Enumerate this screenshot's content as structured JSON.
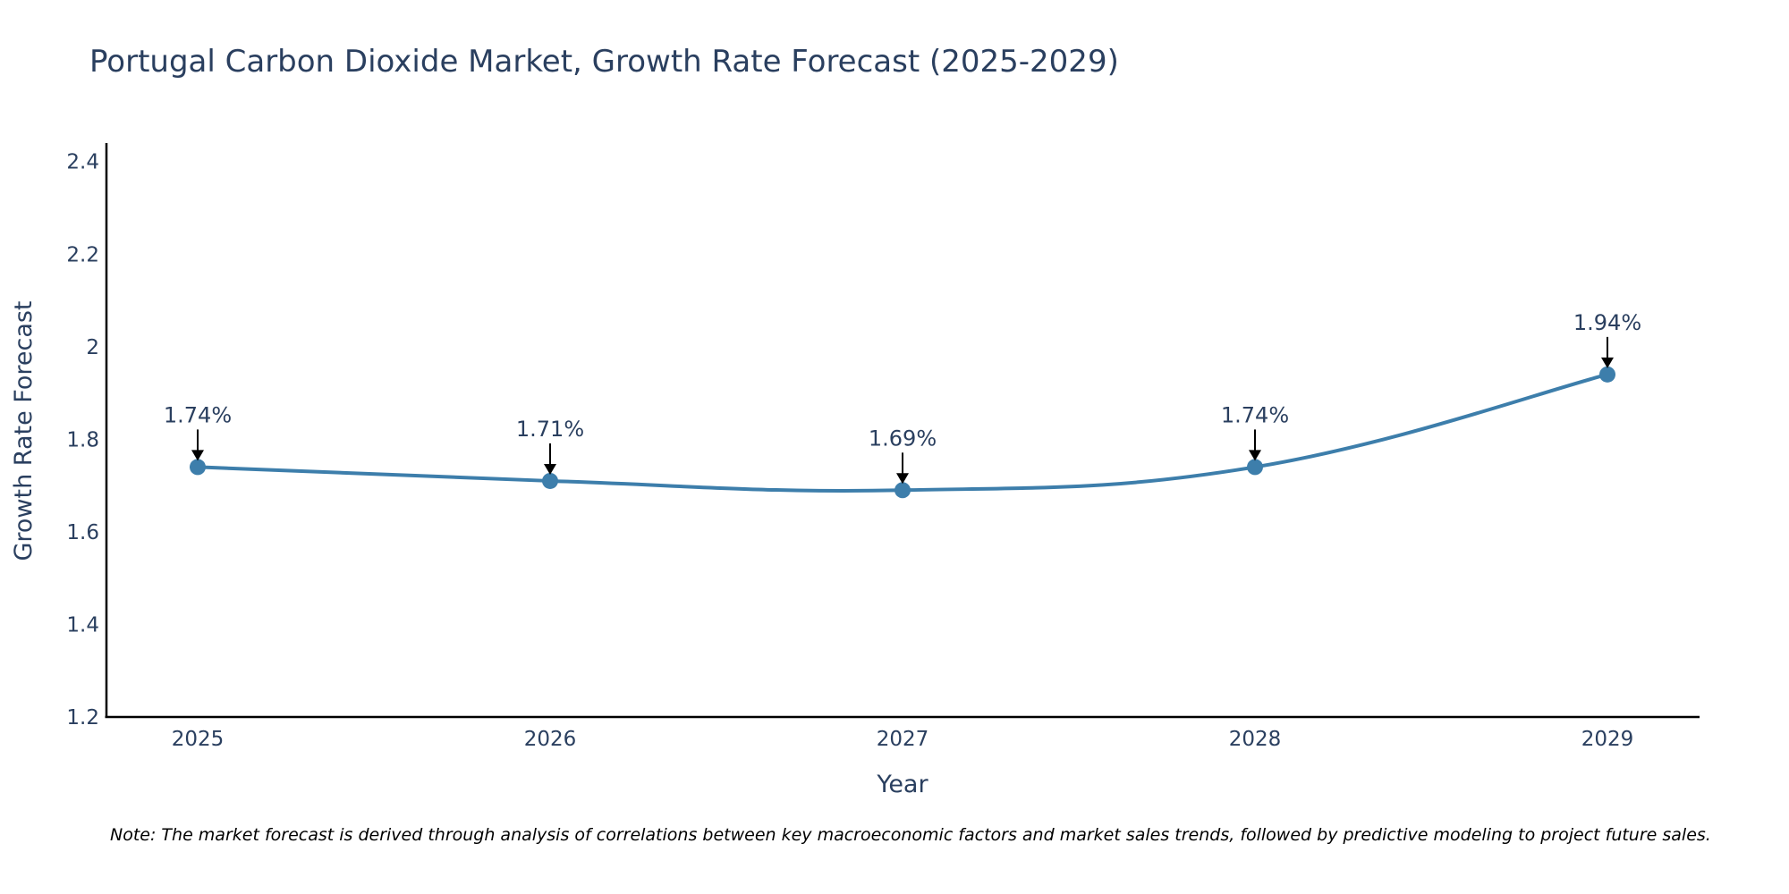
{
  "chart_data": {
    "type": "line",
    "title": "Portugal Carbon Dioxide Market, Growth Rate Forecast (2025-2029)",
    "xlabel": "Year",
    "ylabel": "Growth Rate Forecast",
    "categories": [
      "2025",
      "2026",
      "2027",
      "2028",
      "2029"
    ],
    "series": [
      {
        "name": "Growth Rate Forecast",
        "values": [
          1.74,
          1.71,
          1.69,
          1.74,
          1.94
        ],
        "labels": [
          "1.74%",
          "1.71%",
          "1.69%",
          "1.74%",
          "1.94%"
        ],
        "color": "#3d7eab"
      }
    ],
    "ylim": [
      1.2,
      2.44
    ],
    "yticks": [
      1.2,
      1.4,
      1.6,
      1.8,
      2,
      2.2,
      2.4
    ],
    "ytick_labels": [
      "1.2",
      "1.4",
      "1.6",
      "1.8",
      "2",
      "2.2",
      "2.4"
    ],
    "grid": false,
    "note": "Note: The market forecast is derived through analysis of correlations between key macroeconomic factors and market sales trends, followed by predictive modeling to project future sales."
  }
}
